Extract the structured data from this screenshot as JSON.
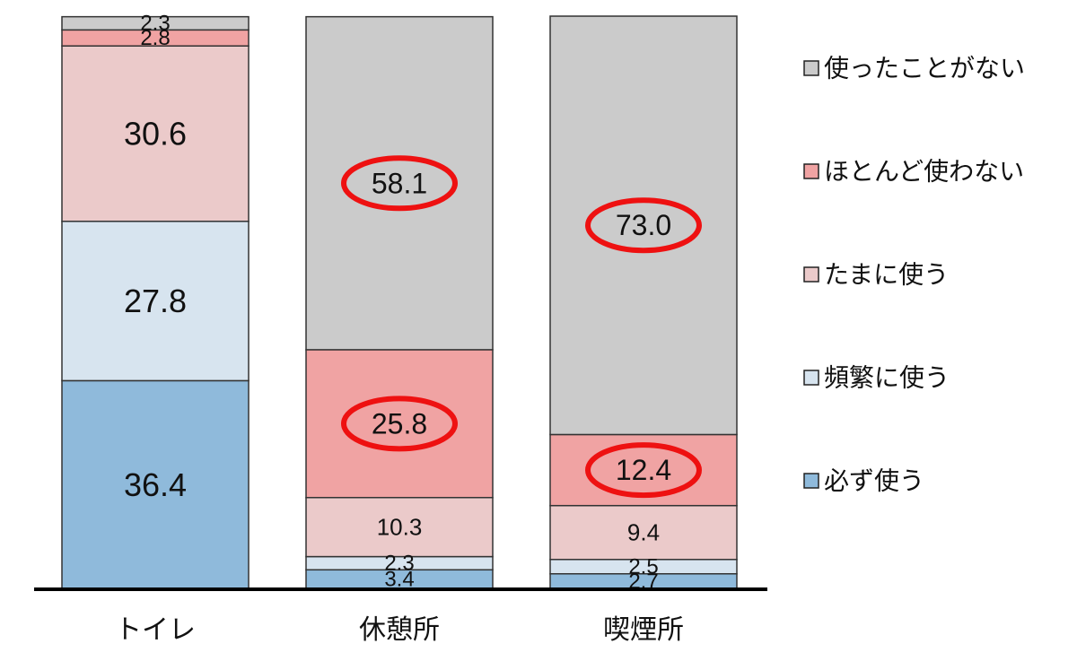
{
  "chart_data": {
    "type": "bar",
    "stacked": true,
    "orientation": "vertical",
    "normalized_to": 100,
    "categories": [
      "トイレ",
      "休憩所",
      "喫煙所"
    ],
    "series": [
      {
        "name": "必ず使う",
        "values": [
          36.4,
          3.4,
          2.7
        ],
        "color": "#8fbadb"
      },
      {
        "name": "頻繁に使う",
        "values": [
          27.8,
          2.3,
          2.5
        ],
        "color": "#d7e4ef"
      },
      {
        "name": "たまに使う",
        "values": [
          30.6,
          10.3,
          9.4
        ],
        "color": "#ebcaca"
      },
      {
        "name": "ほとんど使わない",
        "values": [
          2.8,
          25.8,
          12.4
        ],
        "color": "#f0a3a3"
      },
      {
        "name": "使ったことがない",
        "values": [
          2.3,
          58.1,
          73.0
        ],
        "color": "#cbcbcb"
      }
    ],
    "data_labels": [
      [
        "36.4",
        "27.8",
        "30.6",
        "2.8",
        "2.3"
      ],
      [
        "3.4",
        "2.3",
        "10.3",
        "25.8",
        "58.1"
      ],
      [
        "2.7",
        "2.5",
        "9.4",
        "12.4",
        "73.0"
      ]
    ],
    "highlighted": [
      {
        "category": "休憩所",
        "series": "使ったことがない",
        "value": 58.1
      },
      {
        "category": "休憩所",
        "series": "ほとんど使わない",
        "value": 25.8
      },
      {
        "category": "喫煙所",
        "series": "使ったことがない",
        "value": 73.0
      },
      {
        "category": "喫煙所",
        "series": "ほとんど使わない",
        "value": 12.4
      }
    ],
    "highlight_color": "#ee1111",
    "legend": {
      "position": "right",
      "order": [
        "使ったことがない",
        "ほとんど使わない",
        "たまに使う",
        "頻繁に使う",
        "必ず使う"
      ]
    },
    "ylim": [
      0,
      100
    ],
    "title": "",
    "xlabel": "",
    "ylabel": "",
    "grid": false
  }
}
